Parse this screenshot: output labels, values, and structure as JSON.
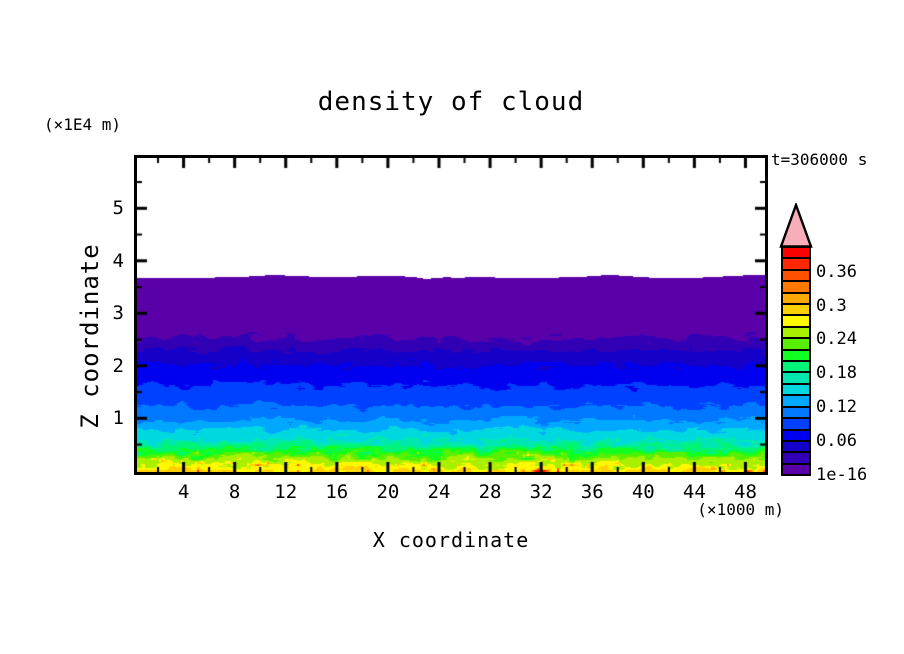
{
  "title": "density of cloud",
  "annotations": {
    "time": "t=306000 s",
    "y_axis_unit": "(×1E4 m)",
    "x_axis_unit": "(×1000 m)"
  },
  "axes": {
    "x": {
      "label": "X coordinate",
      "major_ticks": [
        4,
        8,
        12,
        16,
        20,
        24,
        28,
        32,
        36,
        40,
        44,
        48
      ],
      "minor_tick_step": 2,
      "range": [
        0.4,
        49.6
      ]
    },
    "z": {
      "label": "Z coordinate",
      "major_ticks": [
        1,
        2,
        3,
        4,
        5
      ],
      "minor_tick_step": 0.5,
      "range": [
        0,
        6
      ]
    }
  },
  "colorbar": {
    "cell_step": 0.02,
    "tick_labels": [
      {
        "text": "1e-16",
        "level": 0
      },
      {
        "text": "0.06",
        "level": 3
      },
      {
        "text": "0.12",
        "level": 6
      },
      {
        "text": "0.18",
        "level": 9
      },
      {
        "text": "0.24",
        "level": 12
      },
      {
        "text": "0.3",
        "level": 15
      },
      {
        "text": "0.36",
        "level": 18
      }
    ],
    "colors_bottom_to_top": [
      "#5A00A8",
      "#3200B4",
      "#1400C8",
      "#0000F0",
      "#0040FF",
      "#0078FF",
      "#00A8FF",
      "#00D8E0",
      "#00E8B0",
      "#00F478",
      "#10FF20",
      "#58F000",
      "#A8F000",
      "#FFF800",
      "#FFD000",
      "#FFA800",
      "#FF7800",
      "#FF5000",
      "#FF2800",
      "#FF0000"
    ],
    "overflow_arrow_color": "#F7AEB9"
  },
  "chart_data": {
    "type": "filled_contour",
    "title": "density of cloud",
    "xlabel": "X coordinate (×1000 m)",
    "ylabel": "Z coordinate (×1E4 m)",
    "time": "t=306000 s",
    "x_range": [
      0,
      50
    ],
    "z_range": [
      0,
      6
    ],
    "contour_level_step": 0.02,
    "contour_level_min": "1e-16",
    "contour_level_max": 0.38,
    "cloud_top_z": 3.71,
    "density_profile_z_vs_value": [
      [
        0.0,
        0.285
      ],
      [
        0.12,
        0.26
      ],
      [
        0.24,
        0.24
      ],
      [
        0.32,
        0.22
      ],
      [
        0.4,
        0.2
      ],
      [
        0.5,
        0.18
      ],
      [
        0.59,
        0.16
      ],
      [
        0.78,
        0.14
      ],
      [
        0.97,
        0.12
      ],
      [
        1.25,
        0.1
      ],
      [
        1.63,
        0.08
      ],
      [
        2.01,
        0.06
      ],
      [
        2.3,
        0.04
      ],
      [
        2.53,
        0.02
      ],
      [
        3.71,
        0.0001
      ]
    ],
    "field_description": "Horizontally uniform speckled layers: density ~0.28 (yellow, with orange/red speckles) at the surface decreasing monotonically with height to 1e-16 (violet) at cloud top z≈3.7×1E4 m; white (no cloud) above a gently scalloped top edge."
  }
}
